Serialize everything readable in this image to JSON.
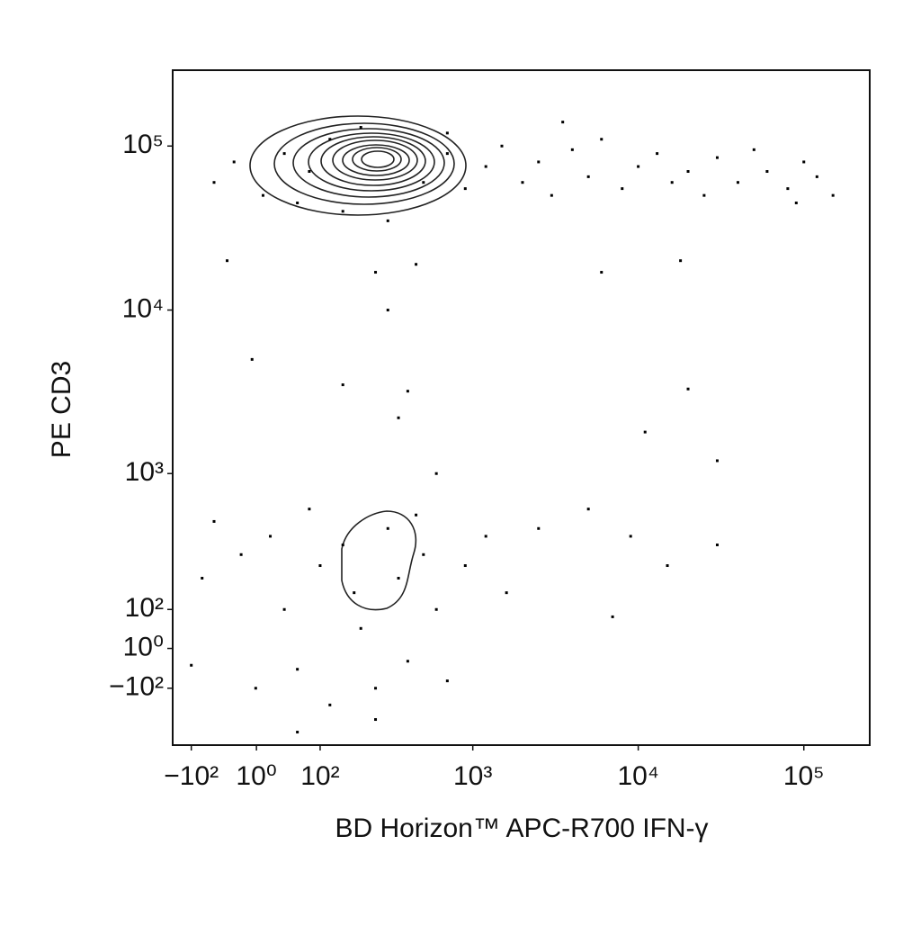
{
  "chart_data": {
    "type": "scatter",
    "x_label": "BD Horizon™ APC-R700 IFN-γ",
    "y_label": "PE  CD3",
    "xscale": "biexponential",
    "yscale": "biexponential",
    "color": "#000000",
    "xlim": [
      -140,
      250000
    ],
    "ylim": [
      -310,
      290000
    ],
    "xticks": [
      {
        "value": -100,
        "label": "−10²"
      },
      {
        "value": 1,
        "label": "10⁰"
      },
      {
        "value": 100,
        "label": "10²"
      },
      {
        "value": 1000,
        "label": "10³"
      },
      {
        "value": 10000,
        "label": "10⁴"
      },
      {
        "value": 100000,
        "label": "10⁵"
      }
    ],
    "yticks": [
      {
        "value": -100,
        "label": "−10²"
      },
      {
        "value": 1,
        "label": "10⁰"
      },
      {
        "value": 100,
        "label": "10²"
      },
      {
        "value": 1000,
        "label": "10³"
      },
      {
        "value": 10000,
        "label": "10⁴"
      },
      {
        "value": 100000,
        "label": "10⁵"
      }
    ],
    "x": [
      -60,
      -30,
      10,
      40,
      60,
      80,
      120,
      150,
      200,
      300,
      500,
      700,
      900,
      1200,
      1500,
      2000,
      2500,
      3000,
      4000,
      5000,
      6000,
      8000,
      10000,
      13000,
      16000,
      20000,
      25000,
      30000,
      40000,
      50000,
      60000,
      80000,
      100000,
      120000,
      150000,
      90000,
      3500,
      700,
      -40,
      250,
      450,
      6000,
      18000,
      300,
      -5,
      150,
      400,
      20000,
      11000,
      350,
      30000,
      600,
      -60,
      -80,
      -20,
      0,
      20,
      40,
      60,
      80,
      100,
      120,
      150,
      180,
      200,
      250,
      300,
      350,
      400,
      450,
      500,
      600,
      700,
      900,
      1200,
      1600,
      2500,
      5000,
      7000,
      9000,
      15000,
      30000,
      250,
      -100,
      60
    ],
    "y": [
      60000,
      80000,
      50000,
      90000,
      45000,
      70000,
      110000,
      40000,
      130000,
      35000,
      60000,
      90000,
      55000,
      75000,
      100000,
      60000,
      80000,
      50000,
      95000,
      65000,
      110000,
      55000,
      75000,
      90000,
      60000,
      70000,
      50000,
      85000,
      60000,
      95000,
      70000,
      55000,
      80000,
      65000,
      50000,
      45000,
      140000,
      120000,
      20000,
      17000,
      19000,
      17000,
      20000,
      10000,
      5000,
      3500,
      3200,
      3300,
      1800,
      2200,
      1200,
      1000,
      500,
      200,
      300,
      -100,
      400,
      100,
      -50,
      600,
      250,
      -150,
      350,
      150,
      50,
      -100,
      450,
      200,
      -30,
      550,
      300,
      100,
      -80,
      250,
      400,
      150,
      450,
      600,
      80,
      400,
      250,
      350,
      -200,
      -40,
      -250
    ]
  }
}
